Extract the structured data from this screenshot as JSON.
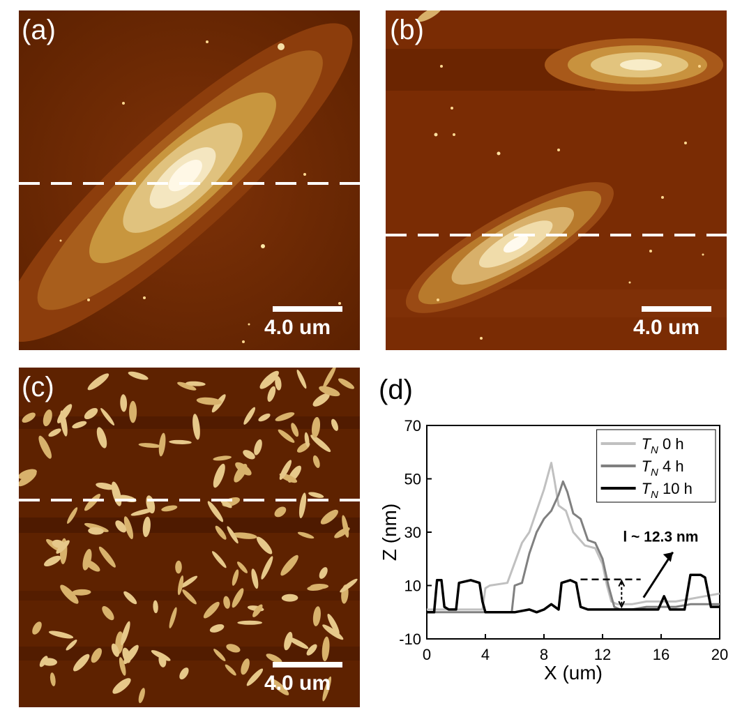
{
  "panels": {
    "a": {
      "label": "(a)",
      "scale_text": "4.0 um"
    },
    "b": {
      "label": "(b)",
      "scale_text": "4.0 um"
    },
    "c": {
      "label": "(c)",
      "scale_text": "4.0 um"
    },
    "d": {
      "label": "(d)"
    }
  },
  "colors": {
    "afm_dark": "#4a1a00",
    "afm_mid": "#7a2e05",
    "afm_layer1": "#9a4a12",
    "afm_layer2": "#b8822e",
    "afm_layer3": "#d8b46a",
    "afm_layer4": "#f2e2b8",
    "series_0h": "#c0c0c0",
    "series_4h": "#808080",
    "series_10h": "#000000"
  },
  "chart_data": {
    "type": "line",
    "xlabel": "X (um)",
    "ylabel": "Z (nm)",
    "xlim": [
      0,
      20
    ],
    "ylim": [
      -10,
      70
    ],
    "xticks": [
      "0",
      "4",
      "8",
      "12",
      "16",
      "20"
    ],
    "yticks": [
      "-10",
      "10",
      "30",
      "50",
      "70"
    ],
    "legend_position": "top-right",
    "annotation": "l ~ 12.3 nm",
    "series": [
      {
        "name_italic": "T",
        "name_sub": "N",
        "name_rest": " 0 h",
        "color": "#c0c0c0",
        "x": [
          0,
          1,
          2,
          3,
          3.8,
          4.0,
          4.3,
          5.5,
          6.5,
          7.0,
          7.5,
          8.0,
          8.3,
          8.5,
          8.7,
          9.0,
          9.5,
          10.0,
          10.8,
          11.5,
          12.0,
          12.3,
          12.6,
          13.0,
          14.0,
          15.0,
          16.0,
          17.0,
          18.0,
          19.0,
          20.0
        ],
        "y": [
          1,
          1,
          1,
          1,
          1,
          9,
          10,
          11,
          26,
          30,
          38,
          46,
          52,
          56,
          50,
          40,
          38,
          30,
          25,
          24,
          18,
          10,
          4,
          3,
          3,
          4,
          4,
          4,
          5,
          6,
          7
        ]
      },
      {
        "name_italic": "T",
        "name_sub": "N",
        "name_rest": " 4 h",
        "color": "#808080",
        "x": [
          0,
          1,
          2,
          3,
          4,
          5,
          5.8,
          6.0,
          6.5,
          7.0,
          7.5,
          8.0,
          8.5,
          9.0,
          9.3,
          9.6,
          10.0,
          10.5,
          11.0,
          11.5,
          12.0,
          12.4,
          12.8,
          13.2,
          14.0,
          15.0,
          16.0,
          17.0,
          18.0,
          19.0,
          20.0
        ],
        "y": [
          0,
          0,
          0,
          0,
          0,
          0,
          0,
          10,
          11,
          22,
          30,
          35,
          38,
          44,
          49,
          45,
          37,
          35,
          27,
          26,
          20,
          10,
          2,
          1,
          1,
          2,
          2,
          2,
          3,
          3,
          3
        ]
      },
      {
        "name_italic": "T",
        "name_sub": "N",
        "name_rest": " 10 h",
        "color": "#000000",
        "x": [
          0,
          0.5,
          0.7,
          1.0,
          1.2,
          1.5,
          2.0,
          2.2,
          3.0,
          3.6,
          3.8,
          4.0,
          5.0,
          6.0,
          7.0,
          7.5,
          8.0,
          8.5,
          9.0,
          9.2,
          9.8,
          10.2,
          10.5,
          11.0,
          12.0,
          13.0,
          14.0,
          15.0,
          15.8,
          16.2,
          16.6,
          17.0,
          17.6,
          18.0,
          18.7,
          19.0,
          19.4,
          20.0
        ],
        "y": [
          0,
          0,
          12,
          12,
          2,
          1,
          1,
          11,
          12,
          11,
          4,
          0,
          0,
          0,
          1,
          0,
          1,
          3,
          1,
          11,
          12,
          11,
          2,
          1,
          1,
          1,
          1,
          1,
          1,
          6,
          1,
          1,
          1,
          14,
          14,
          13,
          2,
          2
        ]
      }
    ]
  }
}
